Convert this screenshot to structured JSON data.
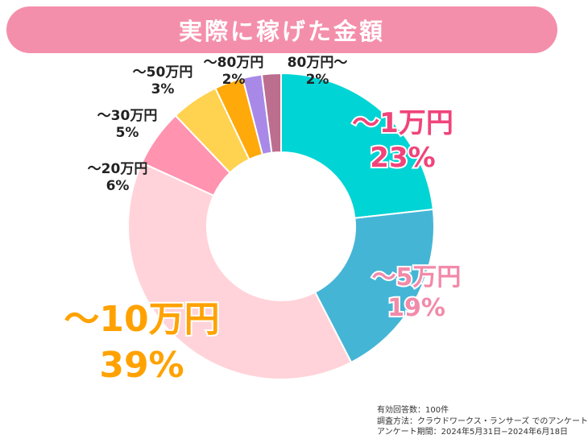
{
  "title": "実際に稼げた金額",
  "chart_data": {
    "type": "pie",
    "donut": true,
    "start_angle_deg": 0,
    "direction": "clockwise",
    "slices": [
      {
        "label": "〜1万円",
        "value": 23,
        "pct_label": "23%",
        "color": "#00d4d4"
      },
      {
        "label": "〜5万円",
        "value": 19,
        "pct_label": "19%",
        "color": "#45b5d6"
      },
      {
        "label": "〜10万円",
        "value": 39,
        "pct_label": "39%",
        "color": "#ffd3d9"
      },
      {
        "label": "〜20万円",
        "value": 6,
        "pct_label": "6%",
        "color": "#ff93b0"
      },
      {
        "label": "〜30万円",
        "value": 5,
        "pct_label": "5%",
        "color": "#ffd24f"
      },
      {
        "label": "〜50万円",
        "value": 3,
        "pct_label": "3%",
        "color": "#ffa90a"
      },
      {
        "label": "〜80万円",
        "value": 2,
        "pct_label": "2%",
        "color": "#a889e8"
      },
      {
        "label": "80万円〜",
        "value": 2,
        "pct_label": "2%",
        "color": "#bc6e8e"
      }
    ],
    "label_colors": {
      "〜1万円": "#f0447a",
      "〜5万円": "#f28aaa",
      "〜10万円": "#ffa200",
      "other": "#222222"
    }
  },
  "footnote": {
    "respondents": "有効回答数：100件",
    "method": "調査方法：クラウドワークス・ランサーズ でのアンケート",
    "period": "アンケート期間：2024年5月31日−2024年6月18日"
  }
}
